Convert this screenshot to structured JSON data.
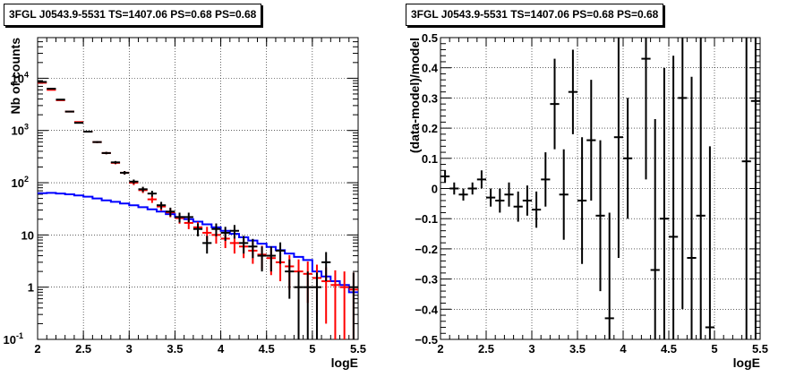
{
  "chart_data": [
    {
      "type": "scatter",
      "title": "3FGL J0543.9-5531 TS=1407.06 PS=0.68 PS=0.68",
      "xlabel": "logE",
      "ylabel": "Nb of counts",
      "xlim": [
        2,
        5.5
      ],
      "ylim": [
        0.1,
        60000
      ],
      "yscale": "log",
      "grid": true,
      "x_tick_labels": [
        "2",
        "2.5",
        "3",
        "3.5",
        "4",
        "4.5",
        "5",
        "5.5"
      ],
      "y_tick_labels": [
        {
          "value": 0.1,
          "base": "10",
          "exp": "-1"
        },
        {
          "value": 1,
          "base": "1",
          "exp": ""
        },
        {
          "value": 10,
          "base": "10",
          "exp": ""
        },
        {
          "value": 100,
          "base": "10",
          "exp": "2"
        },
        {
          "value": 1000,
          "base": "10",
          "exp": "3"
        },
        {
          "value": 10000,
          "base": "10",
          "exp": "4"
        }
      ],
      "series": [
        {
          "kind": "data",
          "color": "#000000",
          "x": [
            2.05,
            2.15,
            2.25,
            2.35,
            2.45,
            2.55,
            2.65,
            2.75,
            2.85,
            2.95,
            3.05,
            3.15,
            3.25,
            3.35,
            3.45,
            3.55,
            3.65,
            3.75,
            3.85,
            3.95,
            4.05,
            4.15,
            4.25,
            4.35,
            4.45,
            4.55,
            4.65,
            4.75,
            4.85,
            4.95,
            5.05,
            5.15,
            5.25,
            5.35,
            5.45
          ],
          "y": [
            8500,
            6300,
            3900,
            2300,
            1400,
            950,
            600,
            370,
            245,
            155,
            105,
            75,
            62,
            37,
            28,
            22,
            22,
            13,
            7,
            13,
            11,
            12,
            7,
            6,
            4,
            4,
            5,
            2,
            1,
            1,
            1,
            3,
            null,
            null,
            1
          ],
          "yerr_low": [
            90,
            80,
            60,
            47,
            37,
            30,
            24,
            19,
            15,
            12,
            10,
            8.5,
            8,
            6,
            5.3,
            4.7,
            4.7,
            3.6,
            2.6,
            3.6,
            3.3,
            3.5,
            2.6,
            2.4,
            2,
            2,
            2.2,
            1.4,
            1,
            1,
            0.9,
            1.7,
            0,
            0,
            0.9
          ],
          "yerr_high": [
            90,
            80,
            60,
            47,
            37,
            30,
            24,
            19,
            15,
            12,
            10,
            8.5,
            8,
            6,
            5.3,
            4.7,
            4.7,
            3.6,
            2.6,
            3.6,
            3.3,
            3.5,
            2.6,
            2.4,
            2,
            2,
            2.2,
            1.4,
            1,
            1,
            0.9,
            1.7,
            0,
            0,
            0.9
          ]
        },
        {
          "kind": "model",
          "color": "#ff0000",
          "x": [
            2.05,
            2.15,
            2.25,
            2.35,
            2.45,
            2.55,
            2.65,
            2.75,
            2.85,
            2.95,
            3.05,
            3.15,
            3.25,
            3.35,
            3.45,
            3.55,
            3.65,
            3.75,
            3.85,
            3.95,
            4.05,
            4.15,
            4.25,
            4.35,
            4.45,
            4.55,
            4.65,
            4.75,
            4.85,
            4.95,
            5.05,
            5.15,
            5.25,
            5.35,
            5.45
          ],
          "y": [
            8200,
            6000,
            3800,
            2300,
            1450,
            950,
            600,
            370,
            240,
            155,
            100,
            72,
            48,
            35,
            27,
            21,
            17,
            14,
            11,
            10,
            8.5,
            7,
            6,
            5,
            4.2,
            3.6,
            3,
            2.5,
            2,
            1.8,
            1.5,
            1.3,
            1.1,
            1,
            0.9
          ],
          "yerr_low": [
            90,
            77,
            62,
            48,
            38,
            31,
            24,
            19,
            15,
            12,
            10,
            8.5,
            7,
            5.9,
            5.2,
            4.6,
            4.1,
            3.7,
            3.3,
            3.2,
            2.9,
            2.6,
            2.4,
            2.2,
            2.0,
            1.9,
            1.7,
            1.6,
            1.4,
            1.3,
            1.2,
            1.1,
            1.0,
            1.0,
            0.8
          ],
          "yerr_high": [
            90,
            77,
            62,
            48,
            38,
            31,
            24,
            19,
            15,
            12,
            10,
            8.5,
            7,
            5.9,
            5.2,
            4.6,
            4.1,
            3.7,
            3.3,
            3.2,
            2.9,
            2.6,
            2.4,
            2.2,
            2.0,
            1.9,
            1.7,
            1.6,
            1.4,
            1.3,
            1.2,
            1.1,
            1.0,
            1.0,
            1.0
          ]
        },
        {
          "kind": "histogram",
          "color": "#0000ff",
          "bin_width": 0.1,
          "x": [
            2.05,
            2.15,
            2.25,
            2.35,
            2.45,
            2.55,
            2.65,
            2.75,
            2.85,
            2.95,
            3.05,
            3.15,
            3.25,
            3.35,
            3.45,
            3.55,
            3.65,
            3.75,
            3.85,
            3.95,
            4.05,
            4.15,
            4.25,
            4.35,
            4.45,
            4.55,
            4.65,
            4.75,
            4.85,
            4.95,
            5.05,
            5.15,
            5.25,
            5.35,
            5.45
          ],
          "y": [
            63,
            64,
            62,
            60,
            57,
            54,
            50,
            46,
            43,
            40,
            37,
            34,
            31,
            28,
            25,
            22,
            20,
            18,
            16,
            14,
            12,
            10.5,
            9,
            7.8,
            6.8,
            5.9,
            5.1,
            4.4,
            3.8,
            3.3,
            2.0,
            1.6,
            1.3,
            1.1,
            0.8
          ]
        }
      ]
    },
    {
      "type": "scatter",
      "title": "3FGL J0543.9-5531 TS=1407.06 PS=0.68 PS=0.68",
      "xlabel": "logE",
      "ylabel": "(data-model)/model",
      "xlim": [
        2,
        5.5
      ],
      "ylim": [
        -0.5,
        0.5
      ],
      "grid": true,
      "x_tick_labels": [
        "2",
        "2.5",
        "3",
        "3.5",
        "4",
        "4.5",
        "5",
        "5.5"
      ],
      "y_tick_labels": [
        "−0.5",
        "−0.4",
        "−0.3",
        "−0.2",
        "−0.1",
        "0",
        "0.1",
        "0.2",
        "0.3",
        "0.4",
        "0.5"
      ],
      "y_tick_values": [
        -0.5,
        -0.4,
        -0.3,
        -0.2,
        -0.1,
        0,
        0.1,
        0.2,
        0.3,
        0.4,
        0.5
      ],
      "series": [
        {
          "kind": "data",
          "color": "#000000",
          "x": [
            2.05,
            2.15,
            2.25,
            2.35,
            2.45,
            2.55,
            2.65,
            2.75,
            2.85,
            2.95,
            3.05,
            3.15,
            3.25,
            3.35,
            3.45,
            3.55,
            3.65,
            3.75,
            3.85,
            3.95,
            4.05,
            4.15,
            4.25,
            4.35,
            4.45,
            4.55,
            4.65,
            4.75,
            4.85,
            4.95,
            5.35,
            5.45
          ],
          "y": [
            0.04,
            0.0,
            -0.02,
            0.0,
            0.03,
            -0.03,
            -0.04,
            -0.02,
            -0.06,
            -0.04,
            -0.07,
            0.03,
            0.28,
            -0.02,
            0.32,
            -0.04,
            0.16,
            -0.09,
            -0.43,
            0.17,
            0.1,
            null,
            0.43,
            -0.27,
            -0.1,
            -0.16,
            0.3,
            -0.23,
            -0.09,
            -0.46,
            0.09,
            0.29
          ],
          "yerr": [
            0.02,
            0.02,
            0.02,
            0.02,
            0.03,
            0.03,
            0.04,
            0.04,
            0.05,
            0.05,
            0.06,
            0.09,
            0.15,
            0.15,
            0.14,
            0.21,
            0.2,
            0.25,
            0.35,
            0.4,
            0.2,
            0,
            0.4,
            0.5,
            0.5,
            0.6,
            0.7,
            0.6,
            0.6,
            0.6,
            0.7,
            0.8
          ]
        }
      ]
    }
  ]
}
